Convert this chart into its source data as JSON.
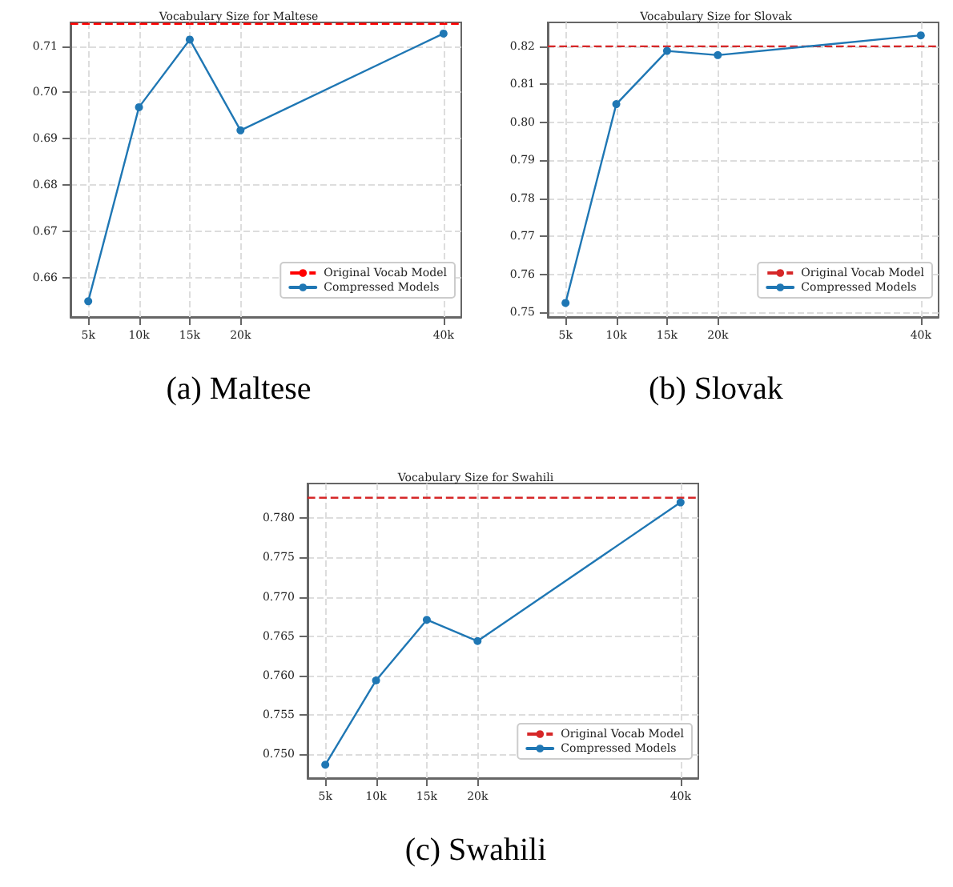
{
  "chart_data": [
    {
      "type": "line",
      "title": "Vocabulary Size for Maltese",
      "annotations": [
        "(a) Maltese"
      ],
      "x": [
        5,
        10,
        15,
        20,
        40
      ],
      "series": [
        {
          "name": "Compressed Models",
          "color": "#1f77b4",
          "values": [
            0.6549,
            0.6968,
            0.7114,
            0.6918,
            0.7127
          ]
        }
      ],
      "ref_lines": [
        {
          "axis": "y",
          "value": 0.7148,
          "label": "Original Vocab Model",
          "color": "#ff0000",
          "line_style": "dashed"
        }
      ],
      "xlim": [
        3.25,
        41.75
      ],
      "xticks": [
        {
          "value": 5,
          "label": "5k"
        },
        {
          "value": 10,
          "label": "10k"
        },
        {
          "value": 15,
          "label": "15k"
        },
        {
          "value": 20,
          "label": "20k"
        },
        {
          "value": 40,
          "label": "40k"
        }
      ],
      "ylim": [
        0.6515,
        0.7151
      ],
      "yticks": [
        0.66,
        0.67,
        0.68,
        0.69,
        {
          "value": 0.7,
          "label": "0.70"
        },
        0.71
      ],
      "grid": true,
      "legend": "bottom right",
      "marker": "circle",
      "line_style": "solid"
    },
    {
      "type": "line",
      "title": "Vocabulary Size for Slovak",
      "annotations": [
        "(b) Slovak"
      ],
      "x": [
        5,
        10,
        15,
        20,
        40
      ],
      "series": [
        {
          "name": "Compressed Models",
          "color": "#1f77b4",
          "values": [
            0.7525,
            0.8048,
            0.8188,
            0.8177,
            0.8229
          ]
        }
      ],
      "ref_lines": [
        {
          "axis": "y",
          "value": 0.82,
          "label": "Original Vocab Model",
          "color": "#d62728",
          "line_style": "dashed"
        }
      ],
      "xlim": [
        3.25,
        41.75
      ],
      "xticks": [
        {
          "value": 5,
          "label": "5k"
        },
        {
          "value": 10,
          "label": "10k"
        },
        {
          "value": 15,
          "label": "15k"
        },
        {
          "value": 20,
          "label": "20k"
        },
        {
          "value": 40,
          "label": "40k"
        }
      ],
      "ylim": [
        0.7488,
        0.8263
      ],
      "yticks": [
        0.75,
        0.76,
        0.77,
        0.78,
        0.79,
        {
          "value": 0.8,
          "label": "0.80"
        },
        0.81,
        0.82
      ],
      "grid": true,
      "legend": "bottom right",
      "marker": "circle",
      "line_style": "solid"
    },
    {
      "type": "line",
      "title": "Vocabulary Size for Swahili",
      "annotations": [
        "(c) Swahili"
      ],
      "x": [
        5,
        10,
        15,
        20,
        40
      ],
      "series": [
        {
          "name": "Compressed Models",
          "color": "#1f77b4",
          "values": [
            0.7487,
            0.7594,
            0.7671,
            0.7644,
            0.782
          ]
        }
      ],
      "ref_lines": [
        {
          "axis": "y",
          "value": 0.7826,
          "label": "Original Vocab Model",
          "color": "#d62728",
          "line_style": "dashed"
        }
      ],
      "xlim": [
        3.25,
        41.75
      ],
      "xticks": [
        {
          "value": 5,
          "label": "5k"
        },
        {
          "value": 10,
          "label": "10k"
        },
        {
          "value": 15,
          "label": "15k"
        },
        {
          "value": 20,
          "label": "20k"
        },
        {
          "value": 40,
          "label": "40k"
        }
      ],
      "ylim": [
        0.747,
        0.7844
      ],
      "yticks": [
        {
          "value": 0.75,
          "label": "0.750"
        },
        {
          "value": 0.755,
          "label": "0.755"
        },
        {
          "value": 0.76,
          "label": "0.760"
        },
        {
          "value": 0.765,
          "label": "0.765"
        },
        {
          "value": 0.77,
          "label": "0.770"
        },
        {
          "value": 0.775,
          "label": "0.775"
        },
        {
          "value": 0.78,
          "label": "0.780"
        }
      ],
      "grid": true,
      "legend": "bottom right",
      "marker": "circle",
      "line_style": "solid"
    }
  ]
}
